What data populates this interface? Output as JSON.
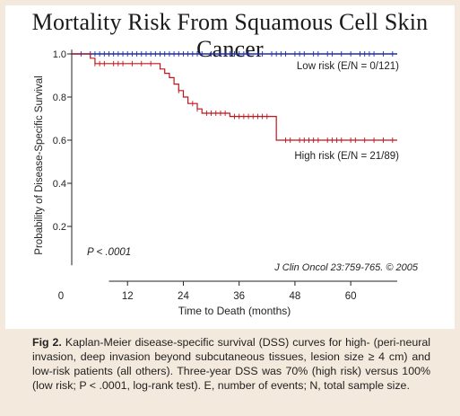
{
  "title": "Mortality Risk From Squamous Cell Skin Cancer",
  "caption": {
    "lead": "Fig 2.",
    "text": "Kaplan-Meier disease-specific survival (DSS) curves for high- (peri-neural invasion, deep invasion beyond subcutaneous tissues, lesion size ≥ 4 cm) and low-risk patients (all others). Three-year DSS was 70% (high risk) versus 100% (low risk; P < .0001, log-rank test). E, number of events; N, total sample size."
  },
  "chart_data": {
    "type": "line",
    "step": true,
    "xlabel": "Time to Death (months)",
    "ylabel": "Probability of Disease-Specific Survival",
    "xlim": [
      0,
      70
    ],
    "ylim": [
      0.0,
      1.0
    ],
    "x_ticks": [
      0,
      12,
      24,
      36,
      48,
      60
    ],
    "y_ticks": [
      0.2,
      0.4,
      0.6,
      0.8,
      1.0
    ],
    "y_tick_labels": [
      "0.2",
      "0.4",
      "0.6",
      "0.8",
      "1.0"
    ],
    "pvalue_text": "P < .0001",
    "citation": "J Clin Oncol 23:759-765. © 2005",
    "series": [
      {
        "name": "Low risk (E/N = 0/121)",
        "color": "#1c2ea8",
        "points": [
          [
            0,
            1.0
          ],
          [
            70,
            1.0
          ]
        ],
        "censored": [
          2,
          4,
          5,
          6,
          7,
          8,
          9,
          10,
          11,
          12,
          13,
          14,
          15,
          16,
          17,
          18,
          19,
          20,
          21,
          22,
          23,
          24,
          25,
          26,
          27,
          28,
          30,
          32,
          33,
          34,
          35,
          36,
          37,
          38,
          40,
          41,
          43,
          44,
          45,
          46,
          48,
          49,
          50,
          52,
          53,
          55,
          56,
          58,
          60,
          62,
          63,
          64,
          65,
          67,
          69
        ]
      },
      {
        "name": "High risk (E/N = 21/89)",
        "color": "#c0141c",
        "points": [
          [
            0,
            1.0
          ],
          [
            4,
            0.98
          ],
          [
            5,
            0.955
          ],
          [
            18,
            0.955
          ],
          [
            19,
            0.93
          ],
          [
            20,
            0.91
          ],
          [
            21,
            0.89
          ],
          [
            22,
            0.86
          ],
          [
            23,
            0.83
          ],
          [
            24,
            0.8
          ],
          [
            25,
            0.77
          ],
          [
            27,
            0.745
          ],
          [
            28,
            0.725
          ],
          [
            33,
            0.725
          ],
          [
            34,
            0.71
          ],
          [
            43,
            0.71
          ],
          [
            44,
            0.6
          ],
          [
            70,
            0.6
          ]
        ],
        "censored": [
          5,
          6,
          7,
          9,
          10,
          11,
          13,
          15,
          17,
          23,
          26,
          27,
          29,
          30,
          31,
          32,
          33,
          35,
          36,
          37,
          38,
          39,
          40,
          41,
          42,
          46,
          47,
          49,
          50,
          51,
          52,
          53,
          55,
          56,
          57,
          58,
          60,
          61,
          63,
          65,
          67,
          69
        ]
      }
    ]
  }
}
